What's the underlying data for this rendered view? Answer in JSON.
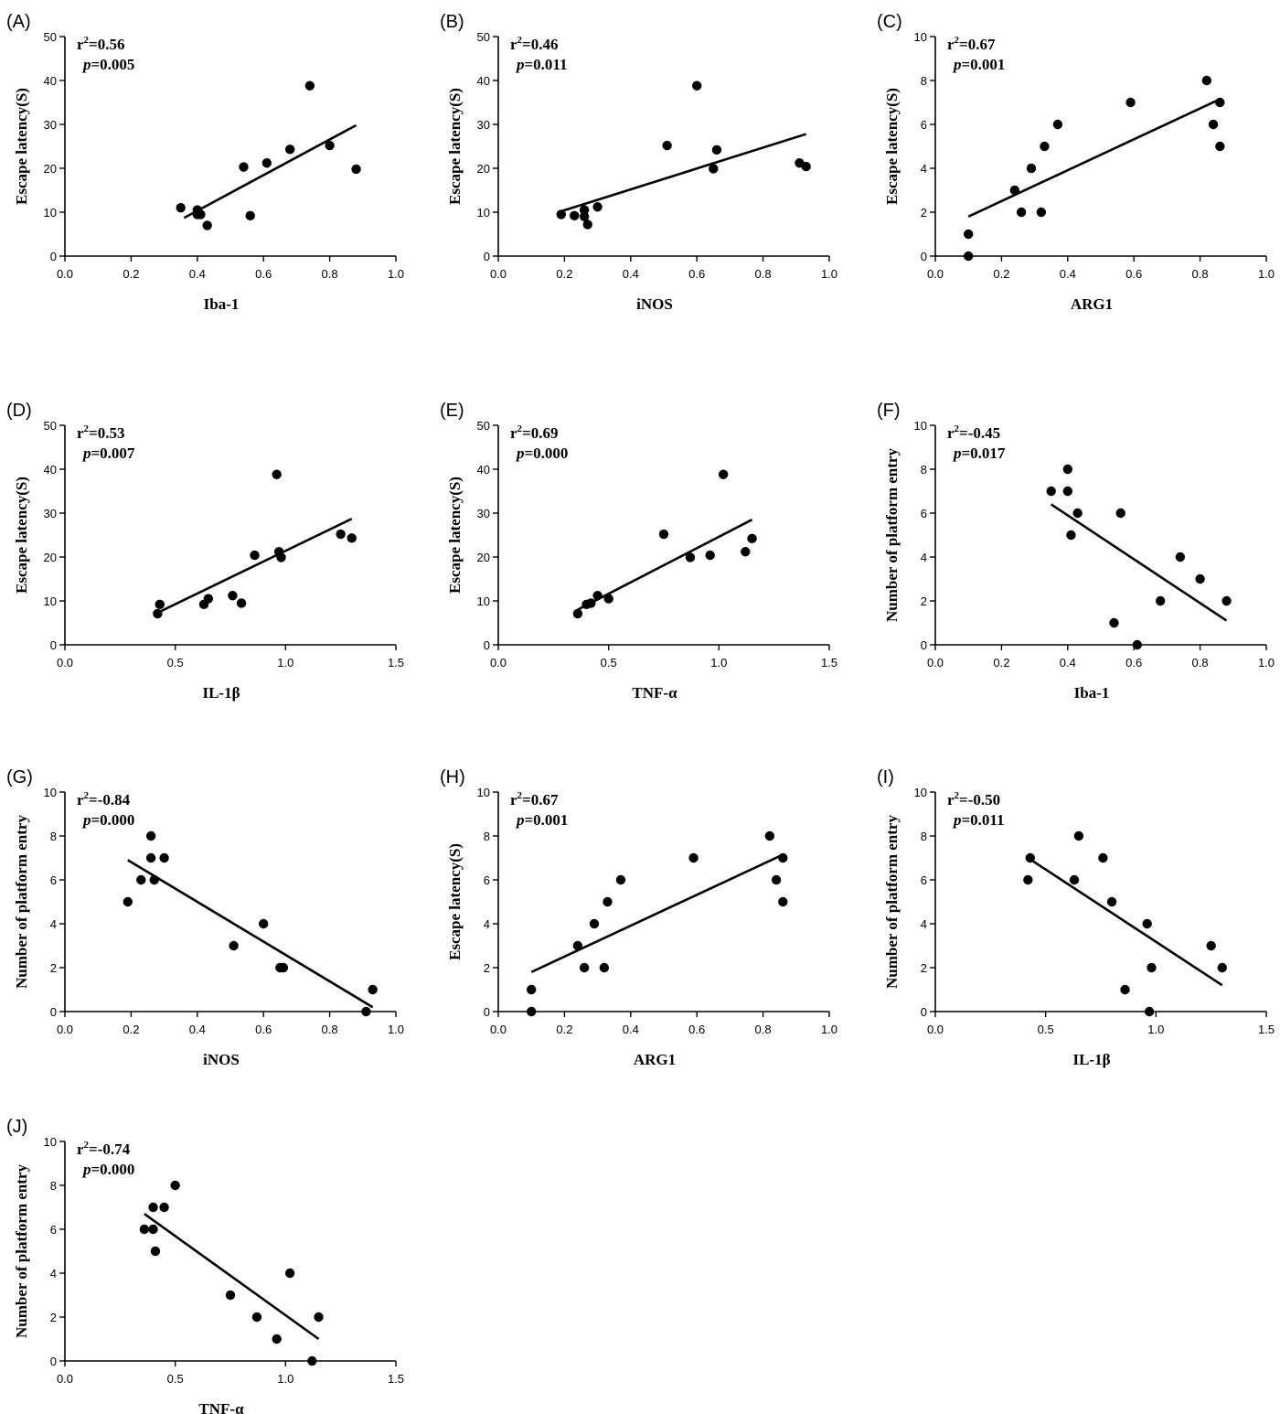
{
  "chart_data": [
    {
      "panel": "(A)",
      "type": "scatter",
      "xlabel": "Iba-1",
      "ylabel": "Escape latency(S)",
      "xlim": [
        0,
        1.0
      ],
      "ylim": [
        0,
        50
      ],
      "xticks": [
        "0.0",
        "0.2",
        "0.4",
        "0.6",
        "0.8",
        "1.0"
      ],
      "yticks": [
        "0",
        "10",
        "20",
        "30",
        "40",
        "50"
      ],
      "stat_r2": "=0.56",
      "stat_p": "=0.005",
      "fit": [
        [
          0.36,
          8.7
        ],
        [
          0.88,
          29.8
        ]
      ],
      "points": [
        [
          0.35,
          11
        ],
        [
          0.4,
          9.5
        ],
        [
          0.4,
          10.5
        ],
        [
          0.41,
          9.5
        ],
        [
          0.43,
          7
        ],
        [
          0.54,
          20.3
        ],
        [
          0.56,
          9.2
        ],
        [
          0.61,
          21.2
        ],
        [
          0.68,
          24.3
        ],
        [
          0.74,
          38.8
        ],
        [
          0.8,
          25.2
        ],
        [
          0.88,
          19.8
        ]
      ]
    },
    {
      "panel": "(B)",
      "type": "scatter",
      "xlabel": "iNOS",
      "ylabel": "Escape latency(S)",
      "xlim": [
        0,
        1.0
      ],
      "ylim": [
        0,
        50
      ],
      "xticks": [
        "0.0",
        "0.2",
        "0.4",
        "0.6",
        "0.8",
        "1.0"
      ],
      "yticks": [
        "0",
        "10",
        "20",
        "30",
        "40",
        "50"
      ],
      "stat_r2": "=0.46",
      "stat_p": "=0.011",
      "fit": [
        [
          0.19,
          10.2
        ],
        [
          0.93,
          27.8
        ]
      ],
      "points": [
        [
          0.19,
          9.5
        ],
        [
          0.23,
          9.2
        ],
        [
          0.26,
          10.5
        ],
        [
          0.26,
          9.0
        ],
        [
          0.27,
          7.2
        ],
        [
          0.3,
          11.2
        ],
        [
          0.51,
          25.2
        ],
        [
          0.6,
          38.8
        ],
        [
          0.65,
          19.9
        ],
        [
          0.66,
          24.2
        ],
        [
          0.91,
          21.2
        ],
        [
          0.93,
          20.4
        ]
      ]
    },
    {
      "panel": "(C)",
      "type": "scatter",
      "xlabel": "ARG1",
      "ylabel": "Escape latency(S)",
      "xlim": [
        0,
        1.0
      ],
      "ylim": [
        0,
        10
      ],
      "xticks": [
        "0.0",
        "0.2",
        "0.4",
        "0.6",
        "0.8",
        "1.0"
      ],
      "yticks": [
        "0",
        "2",
        "4",
        "6",
        "8",
        "10"
      ],
      "stat_r2": "=0.67",
      "stat_p": "=0.001",
      "fit": [
        [
          0.1,
          1.8
        ],
        [
          0.86,
          7.15
        ]
      ],
      "points": [
        [
          0.1,
          1
        ],
        [
          0.1,
          0
        ],
        [
          0.24,
          3
        ],
        [
          0.26,
          2
        ],
        [
          0.29,
          4
        ],
        [
          0.32,
          2
        ],
        [
          0.33,
          5
        ],
        [
          0.37,
          6
        ],
        [
          0.59,
          7
        ],
        [
          0.82,
          8
        ],
        [
          0.84,
          6
        ],
        [
          0.86,
          7
        ],
        [
          0.86,
          5
        ]
      ]
    },
    {
      "panel": "(D)",
      "type": "scatter",
      "xlabel": "IL-1β",
      "ylabel": "Escape latency(S)",
      "xlim": [
        0,
        1.5
      ],
      "ylim": [
        0,
        50
      ],
      "xticks": [
        "0.0",
        "0.5",
        "1.0",
        "1.5"
      ],
      "yticks": [
        "0",
        "10",
        "20",
        "30",
        "40",
        "50"
      ],
      "stat_r2": "=0.53",
      "stat_p": "=0.007",
      "fit": [
        [
          0.42,
          7.3
        ],
        [
          1.3,
          28.7
        ]
      ],
      "points": [
        [
          0.42,
          7.1
        ],
        [
          0.43,
          9.2
        ],
        [
          0.63,
          9.2
        ],
        [
          0.65,
          10.5
        ],
        [
          0.76,
          11.2
        ],
        [
          0.8,
          9.5
        ],
        [
          0.86,
          20.4
        ],
        [
          0.96,
          38.8
        ],
        [
          0.97,
          21.2
        ],
        [
          0.98,
          19.9
        ],
        [
          1.25,
          25.2
        ],
        [
          1.3,
          24.3
        ]
      ]
    },
    {
      "panel": "(E)",
      "type": "scatter",
      "xlabel": "TNF-α",
      "ylabel": "Escape latency(S)",
      "xlim": [
        0,
        1.5
      ],
      "ylim": [
        0,
        50
      ],
      "xticks": [
        "0.0",
        "0.5",
        "1.0",
        "1.5"
      ],
      "yticks": [
        "0",
        "10",
        "20",
        "30",
        "40",
        "50"
      ],
      "stat_r2": "=0.69",
      "stat_p": "=0.000",
      "fit": [
        [
          0.36,
          8.0
        ],
        [
          1.15,
          28.5
        ]
      ],
      "points": [
        [
          0.36,
          7.1
        ],
        [
          0.4,
          9.2
        ],
        [
          0.42,
          9.5
        ],
        [
          0.45,
          11.2
        ],
        [
          0.5,
          10.5
        ],
        [
          0.75,
          25.2
        ],
        [
          0.87,
          19.9
        ],
        [
          0.96,
          20.4
        ],
        [
          1.02,
          38.8
        ],
        [
          1.12,
          21.2
        ],
        [
          1.15,
          24.2
        ]
      ]
    },
    {
      "panel": "(F)",
      "type": "scatter",
      "xlabel": "Iba-1",
      "ylabel": "Number of platform entry",
      "xlim": [
        0,
        1.0
      ],
      "ylim": [
        0,
        10
      ],
      "xticks": [
        "0.0",
        "0.2",
        "0.4",
        "0.6",
        "0.8",
        "1.0"
      ],
      "yticks": [
        "0",
        "2",
        "4",
        "6",
        "8",
        "10"
      ],
      "stat_r2": "=-0.45",
      "stat_p": "=0.017",
      "fit": [
        [
          0.35,
          6.4
        ],
        [
          0.88,
          1.1
        ]
      ],
      "points": [
        [
          0.35,
          7
        ],
        [
          0.4,
          8
        ],
        [
          0.4,
          7
        ],
        [
          0.41,
          5
        ],
        [
          0.43,
          6
        ],
        [
          0.54,
          1
        ],
        [
          0.56,
          6
        ],
        [
          0.61,
          0
        ],
        [
          0.68,
          2
        ],
        [
          0.74,
          4
        ],
        [
          0.8,
          3
        ],
        [
          0.88,
          2
        ]
      ]
    },
    {
      "panel": "(G)",
      "type": "scatter",
      "xlabel": "iNOS",
      "ylabel": "Number of platform entry",
      "xlim": [
        0,
        1.0
      ],
      "ylim": [
        0,
        10
      ],
      "xticks": [
        "0.0",
        "0.2",
        "0.4",
        "0.6",
        "0.8",
        "1.0"
      ],
      "yticks": [
        "0",
        "2",
        "4",
        "6",
        "8",
        "10"
      ],
      "stat_r2": "=-0.84",
      "stat_p": "=0.000",
      "fit": [
        [
          0.19,
          6.9
        ],
        [
          0.93,
          0.2
        ]
      ],
      "points": [
        [
          0.19,
          5
        ],
        [
          0.23,
          6
        ],
        [
          0.26,
          8
        ],
        [
          0.26,
          7
        ],
        [
          0.27,
          6
        ],
        [
          0.3,
          7
        ],
        [
          0.51,
          3
        ],
        [
          0.6,
          4
        ],
        [
          0.65,
          2
        ],
        [
          0.66,
          2
        ],
        [
          0.91,
          0
        ],
        [
          0.93,
          1
        ]
      ]
    },
    {
      "panel": "(H)",
      "type": "scatter",
      "xlabel": "ARG1",
      "ylabel": "Escape latency(S)",
      "xlim": [
        0,
        1.0
      ],
      "ylim": [
        0,
        10
      ],
      "xticks": [
        "0.0",
        "0.2",
        "0.4",
        "0.6",
        "0.8",
        "1.0"
      ],
      "yticks": [
        "0",
        "2",
        "4",
        "6",
        "8",
        "10"
      ],
      "stat_r2": "=0.67",
      "stat_p": "=0.001",
      "fit": [
        [
          0.1,
          1.8
        ],
        [
          0.86,
          7.15
        ]
      ],
      "points": [
        [
          0.1,
          1
        ],
        [
          0.1,
          0
        ],
        [
          0.24,
          3
        ],
        [
          0.26,
          2
        ],
        [
          0.29,
          4
        ],
        [
          0.32,
          2
        ],
        [
          0.33,
          5
        ],
        [
          0.37,
          6
        ],
        [
          0.59,
          7
        ],
        [
          0.82,
          8
        ],
        [
          0.84,
          6
        ],
        [
          0.86,
          7
        ],
        [
          0.86,
          5
        ]
      ]
    },
    {
      "panel": "(I)",
      "type": "scatter",
      "xlabel": "IL-1β",
      "ylabel": "Number of platform entry",
      "xlim": [
        0,
        1.5
      ],
      "ylim": [
        0,
        10
      ],
      "xticks": [
        "0.0",
        "0.5",
        "1.0",
        "1.5"
      ],
      "yticks": [
        "0",
        "2",
        "4",
        "6",
        "8",
        "10"
      ],
      "stat_r2": "=-0.50",
      "stat_p": "=0.011",
      "fit": [
        [
          0.42,
          7.0
        ],
        [
          1.3,
          1.2
        ]
      ],
      "points": [
        [
          0.42,
          6
        ],
        [
          0.43,
          7
        ],
        [
          0.63,
          6
        ],
        [
          0.65,
          8
        ],
        [
          0.76,
          7
        ],
        [
          0.8,
          5
        ],
        [
          0.86,
          1
        ],
        [
          0.96,
          4
        ],
        [
          0.97,
          0
        ],
        [
          0.98,
          2
        ],
        [
          1.25,
          3
        ],
        [
          1.3,
          2
        ]
      ]
    },
    {
      "panel": "(J)",
      "type": "scatter",
      "xlabel": "TNF-α",
      "ylabel": "Number of platform entry",
      "xlim": [
        0,
        1.5
      ],
      "ylim": [
        0,
        10
      ],
      "xticks": [
        "0.0",
        "0.5",
        "1.0",
        "1.5"
      ],
      "yticks": [
        "0",
        "2",
        "4",
        "6",
        "8",
        "10"
      ],
      "stat_r2": "=-0.74",
      "stat_p": "=0.000",
      "fit": [
        [
          0.36,
          6.7
        ],
        [
          1.15,
          1.0
        ]
      ],
      "points": [
        [
          0.36,
          6
        ],
        [
          0.4,
          6
        ],
        [
          0.4,
          7
        ],
        [
          0.41,
          5
        ],
        [
          0.45,
          7
        ],
        [
          0.5,
          8
        ],
        [
          0.75,
          3
        ],
        [
          0.87,
          2
        ],
        [
          0.96,
          1
        ],
        [
          1.02,
          4
        ],
        [
          1.12,
          0
        ],
        [
          1.15,
          2
        ]
      ]
    }
  ]
}
